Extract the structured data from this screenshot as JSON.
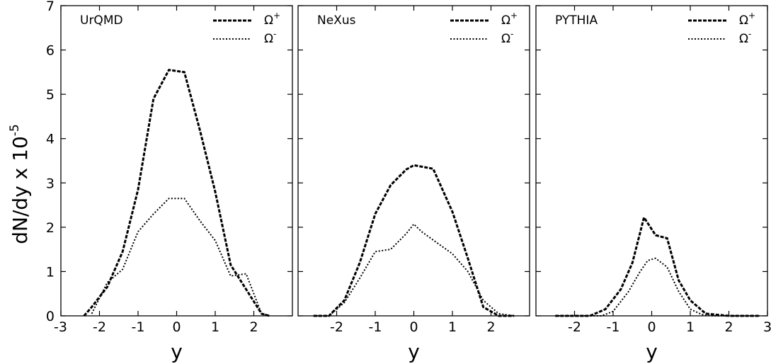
{
  "chart_data": {
    "type": "line",
    "ylabel_main": "dN/dy x 10",
    "ylabel_exp": "-5",
    "xlabel": "y",
    "ylim": [
      0,
      7
    ],
    "y_ticks": [
      "0",
      "1",
      "2",
      "3",
      "4",
      "5",
      "6",
      "7"
    ],
    "xlim": [
      -3,
      3
    ],
    "grid": false,
    "legend_position": "top-right",
    "legend": [
      {
        "base": "Ω",
        "sup": "+",
        "style": "dashed"
      },
      {
        "base": "Ω",
        "sup": "-",
        "style": "dotted"
      }
    ],
    "panels": [
      {
        "label": "UrQMD",
        "x_ticks": [
          {
            "v": -3,
            "t": "-3"
          },
          {
            "v": -2,
            "t": "-2"
          },
          {
            "v": -1,
            "t": "-1"
          },
          {
            "v": 0,
            "t": "0"
          },
          {
            "v": 1,
            "t": "1"
          },
          {
            "v": 2,
            "t": "2"
          }
        ],
        "series": [
          {
            "name": "Ω+",
            "style": "dashed",
            "points": [
              [
                -2.4,
                0
              ],
              [
                -2.2,
                0.2
              ],
              [
                -1.8,
                0.65
              ],
              [
                -1.4,
                1.45
              ],
              [
                -1.0,
                2.85
              ],
              [
                -0.6,
                4.9
              ],
              [
                -0.2,
                5.55
              ],
              [
                0.2,
                5.5
              ],
              [
                0.6,
                4.2
              ],
              [
                1.0,
                2.8
              ],
              [
                1.4,
                1.15
              ],
              [
                1.8,
                0.6
              ],
              [
                2.2,
                0.05
              ],
              [
                2.4,
                0
              ]
            ]
          },
          {
            "name": "Ω-",
            "style": "dotted",
            "points": [
              [
                -2.2,
                0.05
              ],
              [
                -1.8,
                0.75
              ],
              [
                -1.4,
                1.05
              ],
              [
                -1.0,
                1.9
              ],
              [
                -0.6,
                2.3
              ],
              [
                -0.2,
                2.65
              ],
              [
                0.2,
                2.65
              ],
              [
                0.6,
                2.15
              ],
              [
                1.0,
                1.7
              ],
              [
                1.4,
                0.9
              ],
              [
                1.8,
                0.95
              ],
              [
                2.2,
                0.05
              ],
              [
                2.4,
                0
              ]
            ]
          }
        ]
      },
      {
        "label": "NeXus",
        "x_ticks": [
          {
            "v": -2,
            "t": "-2"
          },
          {
            "v": -1,
            "t": "-1"
          },
          {
            "v": 0,
            "t": "0"
          },
          {
            "v": 1,
            "t": "1"
          },
          {
            "v": 2,
            "t": "2"
          }
        ],
        "series": [
          {
            "name": "Ω+",
            "style": "dashed",
            "points": [
              [
                -2.6,
                0
              ],
              [
                -2.2,
                0
              ],
              [
                -1.8,
                0.35
              ],
              [
                -1.4,
                1.2
              ],
              [
                -1.0,
                2.3
              ],
              [
                -0.6,
                2.95
              ],
              [
                -0.2,
                3.3
              ],
              [
                0,
                3.4
              ],
              [
                0.5,
                3.32
              ],
              [
                1.0,
                2.35
              ],
              [
                1.4,
                1.3
              ],
              [
                1.8,
                0.2
              ],
              [
                2.2,
                0
              ],
              [
                2.6,
                0
              ]
            ]
          },
          {
            "name": "Ω-",
            "style": "dotted",
            "points": [
              [
                -2.6,
                0
              ],
              [
                -2.2,
                0
              ],
              [
                -1.8,
                0.3
              ],
              [
                -1.4,
                0.85
              ],
              [
                -1.0,
                1.45
              ],
              [
                -0.6,
                1.5
              ],
              [
                -0.2,
                1.85
              ],
              [
                0,
                2.07
              ],
              [
                0.2,
                1.9
              ],
              [
                0.6,
                1.65
              ],
              [
                1.0,
                1.4
              ],
              [
                1.4,
                1.0
              ],
              [
                1.8,
                0.35
              ],
              [
                2.2,
                0.05
              ],
              [
                2.6,
                0
              ]
            ]
          }
        ]
      },
      {
        "label": "PYTHIA",
        "x_ticks": [
          {
            "v": -2,
            "t": "-2"
          },
          {
            "v": -1,
            "t": "-1"
          },
          {
            "v": 0,
            "t": "0"
          },
          {
            "v": 1,
            "t": "1"
          },
          {
            "v": 2,
            "t": "2"
          },
          {
            "v": 3,
            "t": "3"
          }
        ],
        "series": [
          {
            "name": "Ω+",
            "style": "dashed",
            "points": [
              [
                -2.5,
                0
              ],
              [
                -1.6,
                0
              ],
              [
                -1.2,
                0.15
              ],
              [
                -0.8,
                0.6
              ],
              [
                -0.5,
                1.2
              ],
              [
                -0.2,
                2.22
              ],
              [
                0.1,
                1.82
              ],
              [
                0.4,
                1.75
              ],
              [
                0.7,
                0.8
              ],
              [
                1.0,
                0.35
              ],
              [
                1.4,
                0.05
              ],
              [
                2.0,
                0
              ],
              [
                2.8,
                0
              ]
            ]
          },
          {
            "name": "Ω-",
            "style": "dotted",
            "points": [
              [
                -2.5,
                0
              ],
              [
                -1.3,
                0
              ],
              [
                -1.0,
                0.1
              ],
              [
                -0.6,
                0.55
              ],
              [
                -0.3,
                1.0
              ],
              [
                -0.1,
                1.25
              ],
              [
                0.1,
                1.3
              ],
              [
                0.4,
                1.1
              ],
              [
                0.7,
                0.55
              ],
              [
                1.0,
                0.15
              ],
              [
                1.3,
                0.03
              ],
              [
                1.6,
                0
              ],
              [
                2.8,
                0
              ]
            ]
          }
        ]
      }
    ]
  }
}
